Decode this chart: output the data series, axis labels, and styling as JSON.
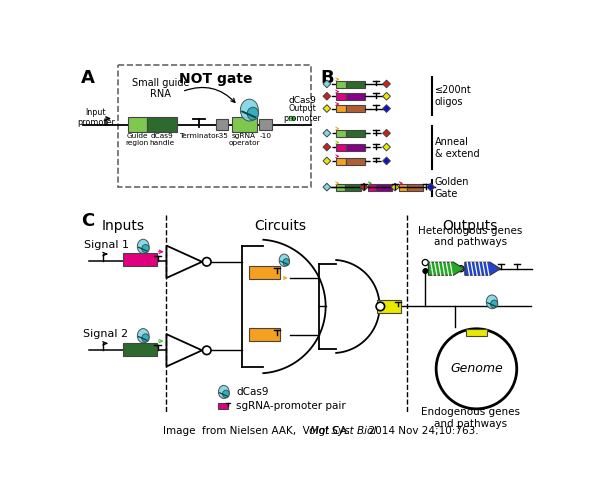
{
  "bg_color": "#ffffff",
  "green_light": "#7ec850",
  "green_dark": "#2d6a2d",
  "gray_color": "#909090",
  "cyan1": "#7dd8e8",
  "cyan2": "#2aa8b8",
  "pink_color": "#e0007f",
  "orange_color": "#f5a020",
  "yellow_color": "#e8e800",
  "blue_color": "#1010cc",
  "red_color": "#cc2020",
  "purple_color": "#880088",
  "brown_color": "#b06030",
  "lime_color": "#88cc00",
  "dcas9_label": "dCas9",
  "sgrna_label": "sgRNA-promoter pair",
  "hetero_label": "Heterologous genes\nand pathways",
  "endo_label": "Endogenous genes\nand pathways",
  "genome_label": "Genome",
  "oligos_label": "≤200nt\noligos",
  "anneal_label": "Anneal\n& extend",
  "golden_label": "Golden\nGate",
  "signal1_label": "Signal 1",
  "signal2_label": "Signal 2",
  "inputs_label": "Inputs",
  "circuits_label": "Circuits",
  "outputs_label": "Outputs",
  "label_A": "A",
  "label_B": "B",
  "label_C": "C",
  "not_gate_title": "NOT gate",
  "input_promoter": "Input\npromoter",
  "output_promoter": "Output\npromoter",
  "guide_region": "Guide\nregion",
  "dcas9_handle": "dCas9\nhandle",
  "terminator_label": "Terminator",
  "m35_label": "-35",
  "sgrna_op_label": "sgRNA\noperator",
  "m10_label": "-10",
  "small_guide_rna": "Small guide\nRNA",
  "citation_pre": "Image  from Nielsen AAK,  Voigt CA. ",
  "citation_italic": "Mol Syst Biol",
  "citation_post": ". 2014 Nov 24;10:763."
}
